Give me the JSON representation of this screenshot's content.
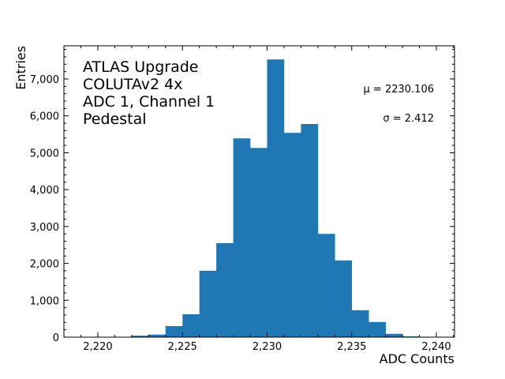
{
  "chart_data": {
    "type": "bar",
    "subtype": "histogram",
    "title": "",
    "xlabel": "ADC Counts",
    "ylabel": "Entries",
    "xlim": [
      2218,
      2241.1
    ],
    "ylim": [
      0,
      7900
    ],
    "bin_width": 1,
    "bin_edges_start": [
      2222,
      2223,
      2224,
      2225,
      2226,
      2227,
      2228,
      2229,
      2230,
      2231,
      2232,
      2233,
      2234,
      2235,
      2236,
      2237,
      2238
    ],
    "values": [
      40,
      70,
      300,
      620,
      1800,
      2550,
      5390,
      5130,
      7530,
      5540,
      5780,
      2800,
      2080,
      730,
      410,
      90,
      20
    ],
    "x_ticks": [
      2220,
      2225,
      2230,
      2235,
      2240
    ],
    "x_tick_labels": [
      "2,220",
      "2,225",
      "2,230",
      "2,235",
      "2,240"
    ],
    "y_ticks": [
      0,
      1000,
      2000,
      3000,
      4000,
      5000,
      6000,
      7000
    ],
    "y_tick_labels": [
      "0",
      "1,000",
      "2,000",
      "3,000",
      "4,000",
      "5,000",
      "6,000",
      "7,000"
    ],
    "bar_color": "#1f77b4",
    "grid": false,
    "annotations": {
      "text_block": [
        "ATLAS Upgrade",
        "COLUTAv2 4x",
        "ADC 1, Channel 1",
        "Pedestal"
      ],
      "mu_label": "μ = 2230.106",
      "sigma_label": "σ = 2.412"
    }
  }
}
